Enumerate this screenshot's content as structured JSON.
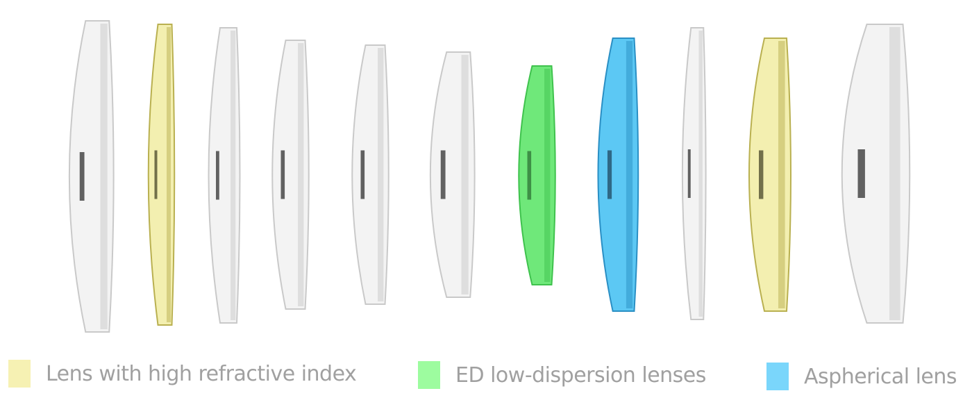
{
  "legend": [
    {
      "label": "Lens with high refractive index",
      "color": "#f6f1b3"
    },
    {
      "label": "ED low-dispersion lenses",
      "color": "#9dfc9f"
    },
    {
      "label": "Aspherical lens",
      "color": "#7ad6fb"
    }
  ],
  "lenses": [
    "clear",
    "high-refractive",
    "clear",
    "clear",
    "clear",
    "clear",
    "ed",
    "aspherical",
    "clear",
    "high-refractive",
    "clear"
  ],
  "lens_colors": {
    "clear": {
      "fill": "#f3f3f3",
      "edge": "#c9c9c9",
      "dark": "#222222"
    },
    "high-refractive": {
      "fill": "#f3efb0",
      "edge": "#b9b050",
      "dark": "#3a3a20"
    },
    "ed": {
      "fill": "#6fe87a",
      "edge": "#3fc24d",
      "dark": "#2a6a30"
    },
    "aspherical": {
      "fill": "#5cc8f4",
      "edge": "#2a8fc4",
      "dark": "#1d3f55"
    }
  }
}
